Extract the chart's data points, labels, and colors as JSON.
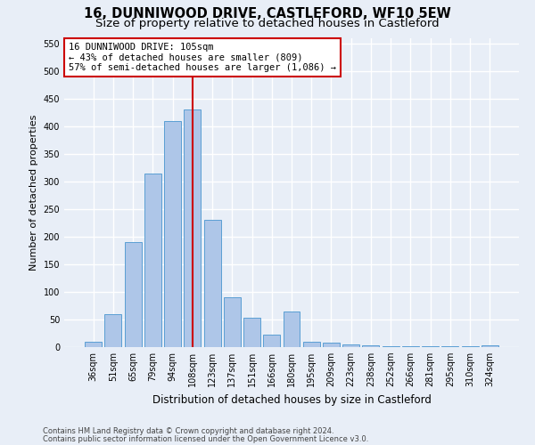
{
  "title": "16, DUNNIWOOD DRIVE, CASTLEFORD, WF10 5EW",
  "subtitle": "Size of property relative to detached houses in Castleford",
  "xlabel": "Distribution of detached houses by size in Castleford",
  "ylabel": "Number of detached properties",
  "categories": [
    "36sqm",
    "51sqm",
    "65sqm",
    "79sqm",
    "94sqm",
    "108sqm",
    "123sqm",
    "137sqm",
    "151sqm",
    "166sqm",
    "180sqm",
    "195sqm",
    "209sqm",
    "223sqm",
    "238sqm",
    "252sqm",
    "266sqm",
    "281sqm",
    "295sqm",
    "310sqm",
    "324sqm"
  ],
  "values": [
    10,
    60,
    190,
    315,
    410,
    430,
    230,
    90,
    53,
    22,
    65,
    10,
    8,
    5,
    4,
    2,
    1,
    1,
    1,
    1,
    3
  ],
  "bar_color": "#aec6e8",
  "bar_edge_color": "#5a9fd4",
  "vline_x_index": 5,
  "vline_color": "#cc0000",
  "annotation_line1": "16 DUNNIWOOD DRIVE: 105sqm",
  "annotation_line2": "← 43% of detached houses are smaller (809)",
  "annotation_line3": "57% of semi-detached houses are larger (1,086) →",
  "annotation_box_color": "#ffffff",
  "annotation_box_edge": "#cc0000",
  "ylim": [
    0,
    560
  ],
  "yticks": [
    0,
    50,
    100,
    150,
    200,
    250,
    300,
    350,
    400,
    450,
    500,
    550
  ],
  "footer1": "Contains HM Land Registry data © Crown copyright and database right 2024.",
  "footer2": "Contains public sector information licensed under the Open Government Licence v3.0.",
  "background_color": "#e8eef7",
  "plot_bg_color": "#e8eef7",
  "grid_color": "#ffffff",
  "title_fontsize": 10.5,
  "subtitle_fontsize": 9.5,
  "xlabel_fontsize": 8.5,
  "ylabel_fontsize": 8,
  "tick_fontsize": 7,
  "annotation_fontsize": 7.5,
  "footer_fontsize": 6,
  "footer_color": "#444444"
}
